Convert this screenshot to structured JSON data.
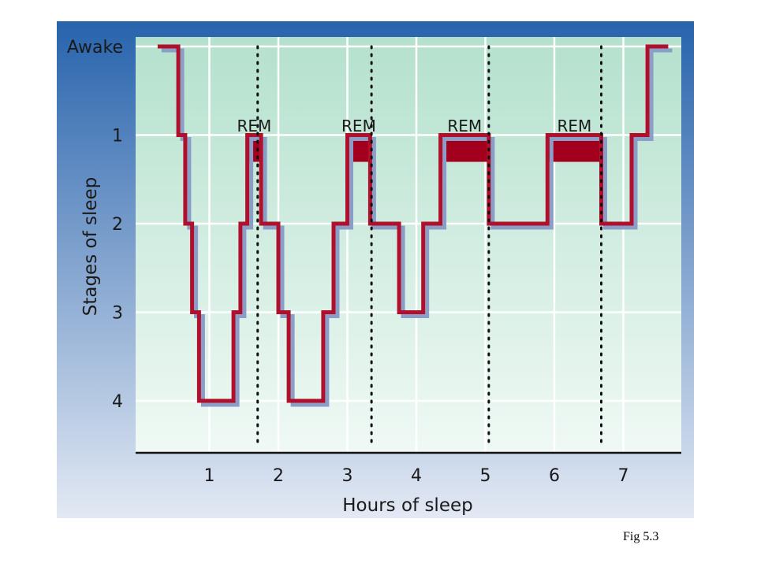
{
  "caption": "Fig 5.3",
  "colors": {
    "panel_top": "#2763ac",
    "panel_bottom": "#e3e9f4",
    "plot_top": "#b4e1cd",
    "plot_bottom": "#f0f9f5",
    "trace": "#b0102c",
    "trace_shadow": "#8a9ec8",
    "rem_fill": "#a3001e",
    "grid": "#ffffff",
    "axis": "#111111"
  },
  "chart_data": {
    "type": "line",
    "step": true,
    "xlabel": "Hours of sleep",
    "ylabel": "Stages of sleep",
    "x_ticks": [
      "1",
      "2",
      "3",
      "4",
      "5",
      "6",
      "7"
    ],
    "x_tick_values": [
      1,
      2,
      3,
      4,
      5,
      6,
      7
    ],
    "y_ticks": [
      "Awake",
      "1",
      "2",
      "3",
      "4"
    ],
    "y_tick_values": [
      0,
      1,
      2,
      3,
      4
    ],
    "xlim": [
      0,
      8
    ],
    "ylim": [
      0,
      4.5
    ],
    "grid": true,
    "series": [
      {
        "points": [
          [
            0.25,
            0
          ],
          [
            0.55,
            0
          ],
          [
            0.55,
            1
          ],
          [
            0.65,
            1
          ],
          [
            0.65,
            2
          ],
          [
            0.75,
            2
          ],
          [
            0.75,
            3
          ],
          [
            0.85,
            3
          ],
          [
            0.85,
            4
          ],
          [
            1.35,
            4
          ],
          [
            1.35,
            3
          ],
          [
            1.45,
            3
          ],
          [
            1.45,
            2
          ],
          [
            1.55,
            2
          ],
          [
            1.55,
            1
          ],
          [
            1.75,
            1
          ],
          [
            1.75,
            2
          ],
          [
            2.0,
            2
          ],
          [
            2.0,
            3
          ],
          [
            2.15,
            3
          ],
          [
            2.15,
            4
          ],
          [
            2.65,
            4
          ],
          [
            2.65,
            3
          ],
          [
            2.8,
            3
          ],
          [
            2.8,
            2
          ],
          [
            3.0,
            2
          ],
          [
            3.0,
            1
          ],
          [
            3.33,
            1
          ],
          [
            3.33,
            2
          ],
          [
            3.75,
            2
          ],
          [
            3.75,
            3
          ],
          [
            4.1,
            3
          ],
          [
            4.1,
            2
          ],
          [
            4.35,
            2
          ],
          [
            4.35,
            1
          ],
          [
            5.05,
            1
          ],
          [
            5.05,
            2
          ],
          [
            5.9,
            2
          ],
          [
            5.9,
            1
          ],
          [
            6.68,
            1
          ],
          [
            6.68,
            2
          ],
          [
            7.12,
            2
          ],
          [
            7.12,
            1
          ],
          [
            7.35,
            1
          ],
          [
            7.35,
            0
          ],
          [
            7.65,
            0
          ]
        ]
      }
    ],
    "rem_periods": [
      {
        "label": "REM",
        "x_start": 1.55,
        "x_end": 1.75
      },
      {
        "label": "REM",
        "x_start": 3.0,
        "x_end": 3.33
      },
      {
        "label": "REM",
        "x_start": 4.35,
        "x_end": 5.05
      },
      {
        "label": "REM",
        "x_start": 5.9,
        "x_end": 6.68
      }
    ],
    "cycle_boundaries": [
      1.7,
      3.35,
      5.05,
      6.68
    ]
  }
}
